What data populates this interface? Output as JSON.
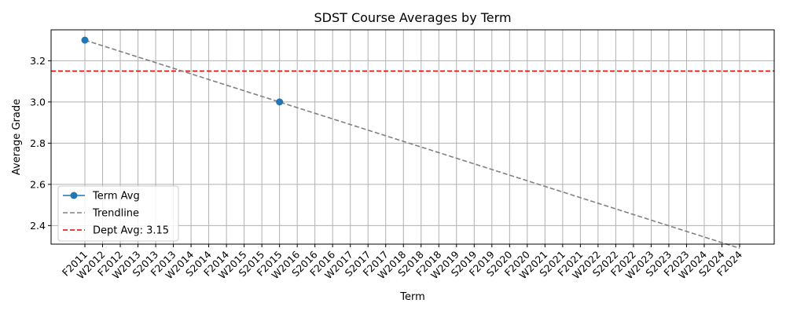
{
  "chart_data": {
    "type": "line",
    "title": "SDST Course Averages by Term",
    "xlabel": "Term",
    "ylabel": "Average Grade",
    "categories": [
      "F2011",
      "W2012",
      "F2012",
      "W2013",
      "S2013",
      "F2013",
      "W2014",
      "S2014",
      "F2014",
      "W2015",
      "S2015",
      "F2015",
      "W2016",
      "S2016",
      "F2016",
      "W2017",
      "S2017",
      "F2017",
      "W2018",
      "S2018",
      "F2018",
      "W2019",
      "S2019",
      "F2019",
      "S2020",
      "F2020",
      "W2021",
      "S2021",
      "F2021",
      "W2022",
      "S2022",
      "F2022",
      "W2023",
      "S2023",
      "F2023",
      "W2024",
      "S2024",
      "F2024"
    ],
    "ylim": [
      2.31,
      3.35
    ],
    "yticks": [
      2.4,
      2.6,
      2.8,
      3.0,
      3.2
    ],
    "ytick_labels": [
      "2.4",
      "2.6",
      "2.8",
      "3.0",
      "3.2"
    ],
    "grid": true,
    "legend_position": "lower-left",
    "series": [
      {
        "name": "Term Avg",
        "style": "line-markers",
        "color": "#1f77b4",
        "points": [
          {
            "x": "F2011",
            "y": 3.3
          },
          {
            "x": "F2015",
            "y": 3.0
          }
        ]
      },
      {
        "name": "Trendline",
        "style": "dashed",
        "color": "#808080",
        "points": [
          {
            "x": "F2011",
            "y": 3.3
          },
          {
            "x": "F2024",
            "y": 2.29
          }
        ]
      }
    ],
    "reference_line": {
      "name": "Dept Avg: 3.15",
      "value": 3.15,
      "color": "#e00000",
      "style": "dashed"
    }
  }
}
